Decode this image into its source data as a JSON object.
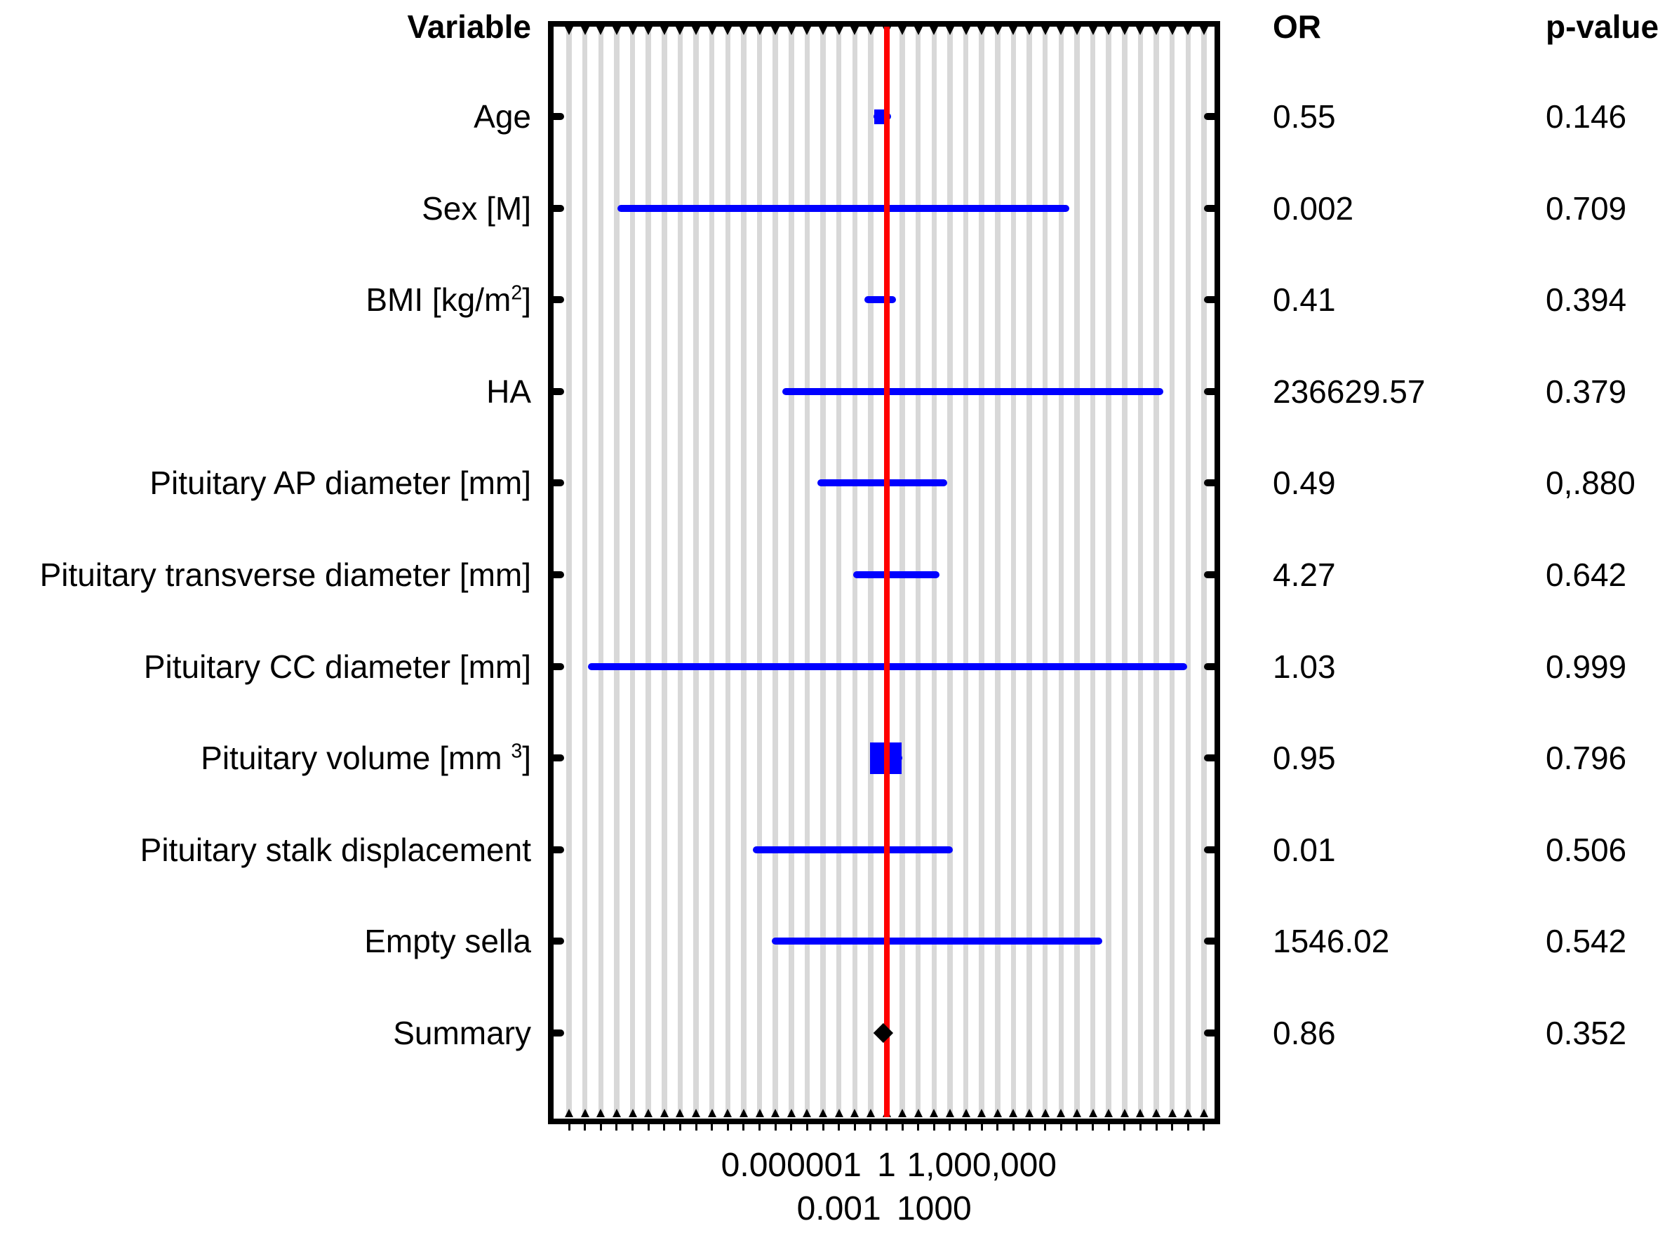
{
  "headers": {
    "variable": "Variable",
    "or": "OR",
    "p_value": "p-value"
  },
  "colors": {
    "ci_blue": "#0000ff",
    "reference_red": "#ff0000",
    "stripe_gray": "#d8d8d8",
    "frame_black": "#000000",
    "summary_black": "#000000"
  },
  "chart_data": {
    "type": "forest",
    "x_scale": "log10",
    "reference_line_or": 1,
    "grid": "vertical-stripes-every-decade",
    "decades_log10": {
      "min": -20,
      "max": 20,
      "step": 1
    },
    "axis_tick_labels": [
      {
        "text": "0.000001",
        "log10": -6,
        "line": 1
      },
      {
        "text": "1",
        "log10": 0,
        "line": 1
      },
      {
        "text": "1,000,000",
        "log10": 6,
        "line": 1
      },
      {
        "text": "0.001",
        "log10": -3,
        "line": 2
      },
      {
        "text": "1000",
        "log10": 3,
        "line": 2
      }
    ],
    "rows": [
      {
        "label": "Age",
        "sup": "",
        "post": "",
        "or": "0.55",
        "p": "0.146",
        "ci_log10": [
          -0.8,
          0.27
        ],
        "marker": {
          "type": "square",
          "w": 15,
          "h": 21,
          "at_log10": -0.45
        }
      },
      {
        "label": "Sex [M]",
        "sup": "",
        "post": "",
        "or": "0.002",
        "p": "0.709",
        "ci_log10": [
          -16.96,
          11.52
        ],
        "marker": null
      },
      {
        "label": "BMI [kg/m",
        "sup": "2",
        "post": "]",
        "or": "0.41",
        "p": "0.394",
        "ci_log10": [
          -1.39,
          0.6
        ],
        "marker": null
      },
      {
        "label": "HA",
        "sup": "",
        "post": "",
        "or": "236629.57",
        "p": "0.379",
        "ci_log10": [
          -6.57,
          17.45
        ],
        "marker": null
      },
      {
        "label": "Pituitary AP diameter [mm]",
        "sup": "",
        "post": "",
        "or": "0.49",
        "p": "0,.880",
        "ci_log10": [
          -4.36,
          3.83
        ],
        "marker": null
      },
      {
        "label": "Pituitary transverse diameter [mm]",
        "sup": "",
        "post": "",
        "or": "4.27",
        "p": "0.642",
        "ci_log10": [
          -2.1,
          3.34
        ],
        "marker": null
      },
      {
        "label": "Pituitary CC diameter [mm]",
        "sup": "",
        "post": "",
        "or": "1.03",
        "p": "0.999",
        "ci_log10": [
          -18.8,
          18.95
        ],
        "marker": null
      },
      {
        "label": "Pituitary volume [mm ",
        "sup": "3",
        "post": "]",
        "or": "0.95",
        "p": "0.796",
        "ci_log10": [
          -1.0,
          1.0
        ],
        "marker": {
          "type": "square",
          "w": 45,
          "h": 45,
          "at_log10": -0.03
        }
      },
      {
        "label": "Pituitary stalk displacement",
        "sup": "",
        "post": "",
        "or": "0.01",
        "p": "0.506",
        "ci_log10": [
          -8.42,
          4.18
        ],
        "marker": null
      },
      {
        "label": "Empty sella",
        "sup": "",
        "post": "",
        "or": "1546.02",
        "p": "0.542",
        "ci_log10": [
          -7.23,
          13.6
        ],
        "marker": null
      },
      {
        "label": "Summary",
        "sup": "",
        "post": "",
        "or": "0.86",
        "p": "0.352",
        "ci_log10": null,
        "marker": {
          "type": "diamond",
          "w": 28,
          "h": 28,
          "at_log10": -0.2
        }
      }
    ]
  }
}
